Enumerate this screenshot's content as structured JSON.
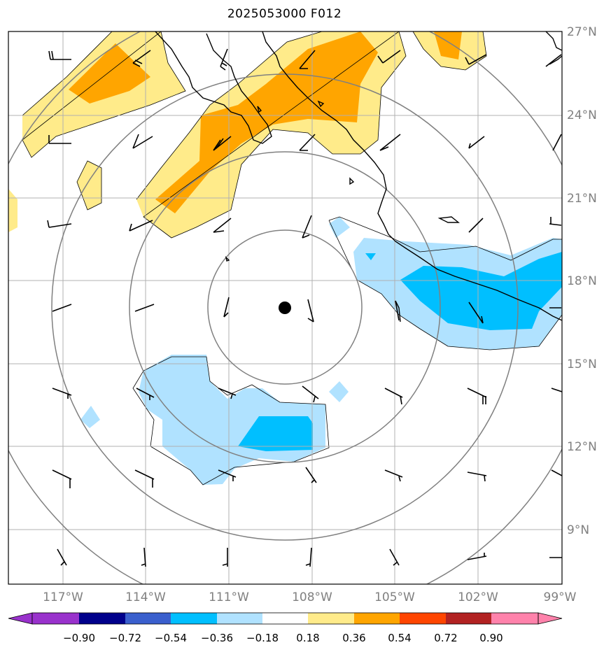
{
  "title": "2025053000 F012",
  "lat_labels": [
    "27°N",
    "24°N",
    "21°N",
    "18°N",
    "15°N",
    "12°N",
    "9°N"
  ],
  "lon_labels": [
    "117°W",
    "114°W",
    "111°W",
    "108°W",
    "105°W",
    "102°W",
    "99°W"
  ],
  "colorbar": {
    "tick_labels": [
      "−0.90",
      "−0.72",
      "−0.54",
      "−0.36",
      "−0.18",
      "0.18",
      "0.36",
      "0.54",
      "0.72",
      "0.90"
    ],
    "colors": [
      "#9932cc",
      "#00008b",
      "#3a5fcd",
      "#00bfff",
      "#b0e2ff",
      "#ffffff",
      "#ffeb8a",
      "#ffa500",
      "#ff4500",
      "#b22222",
      "#ff82ab"
    ]
  },
  "fill_colors": {
    "light_yellow": "#ffeb8a",
    "orange": "#ffa500",
    "light_blue": "#b0e2ff",
    "deep_sky_blue": "#00bfff"
  },
  "center_marker": "storm-center-dot"
}
